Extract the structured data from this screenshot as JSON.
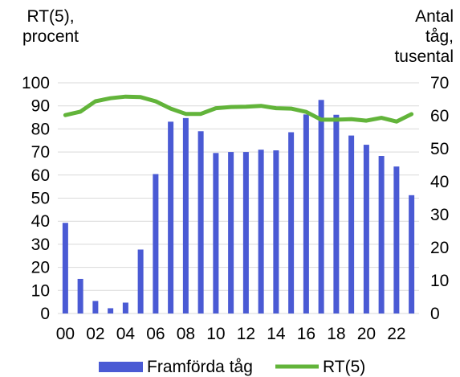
{
  "chart_data": {
    "type": "bar+line",
    "x": [
      "00",
      "01",
      "02",
      "03",
      "04",
      "05",
      "06",
      "07",
      "08",
      "09",
      "10",
      "11",
      "12",
      "13",
      "14",
      "15",
      "16",
      "17",
      "18",
      "19",
      "20",
      "21",
      "22",
      "23"
    ],
    "xtick_labels": [
      "00",
      "02",
      "04",
      "06",
      "08",
      "10",
      "12",
      "14",
      "16",
      "18",
      "20",
      "22"
    ],
    "y_left_label_lines": [
      "RT(5),",
      "procent"
    ],
    "y_right_label_lines": [
      "Antal",
      "tåg,",
      "tusental"
    ],
    "y_left_lim": [
      0,
      100
    ],
    "y_left_ticks": [
      "0",
      "10",
      "20",
      "30",
      "40",
      "50",
      "60",
      "70",
      "80",
      "90",
      "100"
    ],
    "y_right_lim": [
      0,
      70
    ],
    "y_right_ticks": [
      "0",
      "10",
      "20",
      "30",
      "40",
      "50",
      "60",
      "70"
    ],
    "grid": true,
    "legend_position": "bottom",
    "series": [
      {
        "name": "Framförda tåg",
        "kind": "bar",
        "axis": "right",
        "color": "#4a5ad4",
        "values": [
          27.5,
          10.5,
          3.8,
          1.6,
          3.3,
          19.4,
          42.3,
          58.2,
          59.3,
          55.3,
          48.7,
          49.0,
          49.0,
          49.7,
          49.5,
          55.0,
          60.4,
          64.8,
          60.3,
          54.0,
          51.2,
          47.8,
          44.6,
          35.9
        ]
      },
      {
        "name": "RT(5)",
        "kind": "line",
        "axis": "left",
        "color": "#62b43a",
        "values": [
          86,
          87.5,
          92,
          93.3,
          94,
          93.8,
          92,
          88.8,
          86.5,
          86.5,
          89,
          89.5,
          89.6,
          90,
          89,
          88.8,
          87.4,
          84,
          84,
          84.2,
          83.6,
          84.8,
          83.2,
          86.4
        ]
      }
    ]
  }
}
